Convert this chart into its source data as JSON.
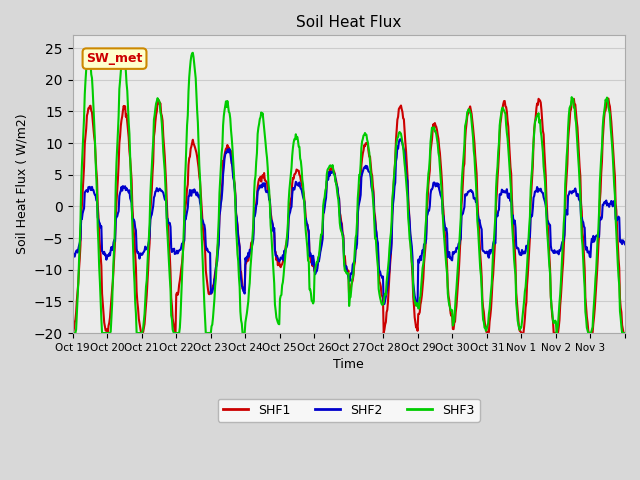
{
  "title": "Soil Heat Flux",
  "ylabel": "Soil Heat Flux ( W/m2)",
  "xlabel": "Time",
  "ylim": [
    -20,
    27
  ],
  "yticks": [
    -20,
    -15,
    -10,
    -5,
    0,
    5,
    10,
    15,
    20,
    25
  ],
  "legend_labels": [
    "SHF1",
    "SHF2",
    "SHF3"
  ],
  "shf1_color": "#cc0000",
  "shf2_color": "#0000cc",
  "shf3_color": "#00cc00",
  "annotation_text": "SW_met",
  "annotation_bg": "#ffffcc",
  "annotation_border": "#cc8800",
  "annotation_text_color": "#cc0000",
  "grid_color": "#cccccc",
  "plot_bg_color": "#ebebeb",
  "fig_bg_color": "#d8d8d8",
  "x_tick_labels": [
    "Oct 19",
    "Oct 20",
    "Oct 21",
    "Oct 22",
    "Oct 23",
    "Oct 24",
    "Oct 25",
    "Oct 26",
    "Oct 27",
    "Oct 28",
    "Oct 29",
    "Oct 30",
    "Oct 31",
    "Nov 1",
    "Nov 2",
    "Nov 3",
    ""
  ],
  "line_width": 1.5,
  "n_days": 16
}
